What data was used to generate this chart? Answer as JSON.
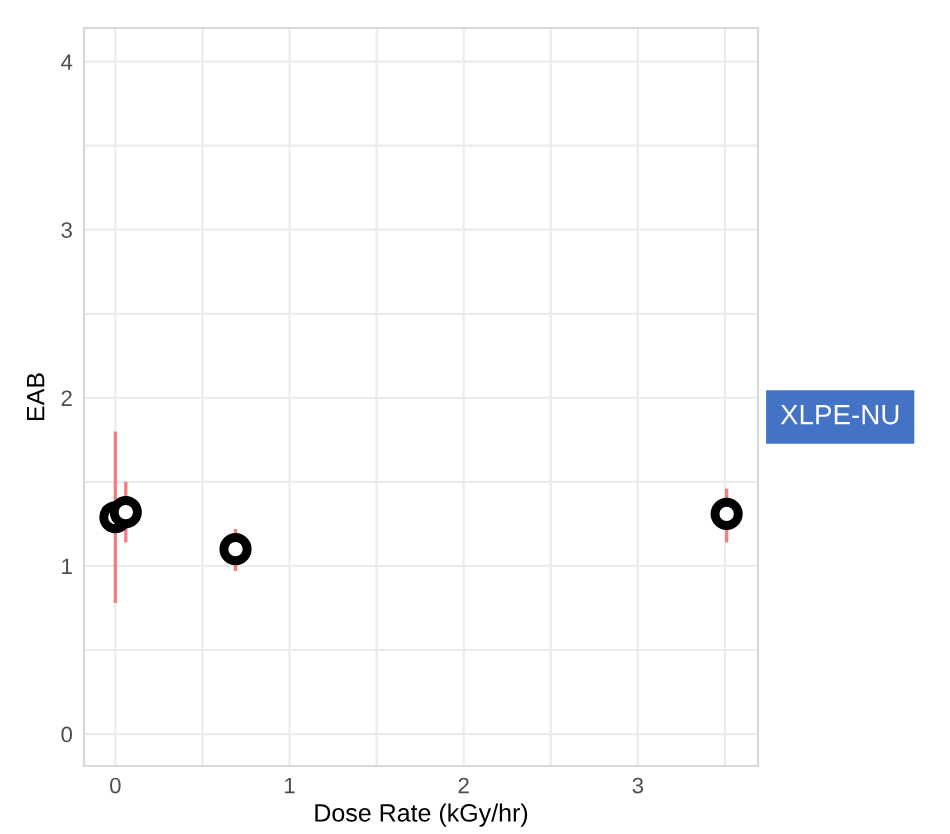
{
  "chart_data": {
    "type": "scatter",
    "xlabel": "Dose Rate (kGy/hr)",
    "ylabel": "EAB",
    "x": [
      0,
      0.06,
      0.69,
      3.51
    ],
    "series": [
      {
        "color": "#000000",
        "values": [
          1.29,
          1.32,
          1.1,
          1.31
        ],
        "errors": [
          [
            0.78,
            1.8
          ],
          [
            1.14,
            1.5
          ],
          [
            0.97,
            1.22
          ],
          [
            1.14,
            1.46
          ]
        ]
      }
    ],
    "xlim": [
      -0.18,
      3.69
    ],
    "ylim": [
      -0.19,
      4.2
    ],
    "xticks": [
      0,
      {
        "value": 0.5,
        "label": null
      },
      1,
      {
        "value": 1.5,
        "label": null
      },
      2,
      {
        "value": 2.5,
        "label": null
      },
      3,
      {
        "value": 3.5,
        "label": null
      }
    ],
    "yticks": [
      0,
      {
        "value": 0.5,
        "label": null
      },
      1,
      {
        "value": 1.5,
        "label": null
      },
      2,
      {
        "value": 2.5,
        "label": null
      },
      3,
      {
        "value": 3.5,
        "label": null
      },
      4
    ],
    "grid": true,
    "marker": "circle",
    "annotations": [
      "XLPE-NU"
    ]
  }
}
